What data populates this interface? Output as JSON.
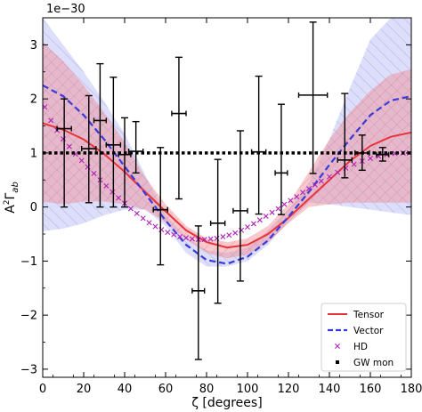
{
  "chart_data": {
    "type": "line",
    "title": "",
    "exponent_label": "1e−30",
    "xlabel": "ζ [degrees]",
    "ylabel_main": "A",
    "ylabel_sup": "2",
    "ylabel_gamma": "Γ",
    "ylabel_sub": "ab",
    "xlim": [
      0,
      180
    ],
    "ylim": [
      -3.15,
      3.5
    ],
    "x_ticks": [
      0,
      20,
      40,
      60,
      80,
      100,
      120,
      140,
      160,
      180
    ],
    "y_ticks": [
      -3,
      -2,
      -1,
      0,
      1,
      2,
      3
    ],
    "x_tick_labels": [
      "0",
      "20",
      "40",
      "60",
      "80",
      "100",
      "120",
      "140",
      "160",
      "180"
    ],
    "y_tick_labels": [
      "−3",
      "−2",
      "−1",
      "0",
      "1",
      "2",
      "3"
    ],
    "grid": false,
    "legend_position": "bottom-right",
    "colors": {
      "tensor": "#e8333a",
      "vector": "#3a3ad8",
      "hd": "#b020b8",
      "gw_mon": "#000000",
      "tensor_band": "#f08a92",
      "vector_band": "#9ea0ee"
    },
    "series": [
      {
        "name": "Tensor",
        "style": "solid",
        "x": [
          0,
          10,
          20,
          30,
          40,
          50,
          60,
          70,
          80,
          90,
          100,
          110,
          120,
          130,
          140,
          150,
          160,
          170,
          180
        ],
        "y": [
          1.55,
          1.43,
          1.25,
          0.98,
          0.65,
          0.28,
          -0.08,
          -0.43,
          -0.65,
          -0.75,
          -0.7,
          -0.5,
          -0.2,
          0.15,
          0.5,
          0.85,
          1.13,
          1.3,
          1.38
        ]
      },
      {
        "name": "Vector",
        "style": "dashed",
        "x": [
          0,
          10,
          20,
          30,
          40,
          50,
          60,
          70,
          80,
          90,
          100,
          110,
          120,
          130,
          140,
          150,
          160,
          170,
          180
        ],
        "y": [
          2.25,
          2.05,
          1.7,
          1.25,
          0.75,
          0.25,
          -0.25,
          -0.7,
          -0.98,
          -1.05,
          -0.92,
          -0.62,
          -0.18,
          0.28,
          0.78,
          1.25,
          1.7,
          1.97,
          2.05
        ]
      },
      {
        "name": "HD",
        "style": "markers",
        "x": [
          1,
          4,
          7,
          10,
          13,
          16,
          19,
          22,
          25,
          28,
          31,
          34,
          37,
          40,
          43,
          46,
          49,
          52,
          55,
          58,
          61,
          64,
          67,
          70,
          73,
          76,
          79,
          82,
          85,
          88,
          91,
          94,
          97,
          100,
          103,
          106,
          109,
          112,
          115,
          118,
          121,
          124,
          127,
          130,
          133,
          136,
          140,
          144,
          148,
          152,
          156,
          160,
          164,
          168,
          172,
          176,
          179
        ],
        "y": [
          1.85,
          1.6,
          1.42,
          1.26,
          1.12,
          0.98,
          0.86,
          0.74,
          0.62,
          0.5,
          0.39,
          0.28,
          0.17,
          0.07,
          -0.03,
          -0.12,
          -0.21,
          -0.29,
          -0.36,
          -0.42,
          -0.47,
          -0.51,
          -0.55,
          -0.57,
          -0.59,
          -0.6,
          -0.6,
          -0.59,
          -0.58,
          -0.55,
          -0.52,
          -0.48,
          -0.43,
          -0.37,
          -0.31,
          -0.24,
          -0.17,
          -0.1,
          -0.03,
          0.05,
          0.12,
          0.19,
          0.27,
          0.34,
          0.41,
          0.48,
          0.56,
          0.64,
          0.72,
          0.79,
          0.85,
          0.9,
          0.94,
          0.97,
          0.99,
          1.0,
          1.0
        ]
      },
      {
        "name": "GW mon",
        "style": "dotted",
        "x": [
          0,
          180
        ],
        "y": [
          1.0,
          1.0
        ]
      }
    ],
    "bands": [
      {
        "series": "Vector",
        "x": [
          0,
          10,
          20,
          30,
          40,
          50,
          60,
          70,
          80,
          90,
          100,
          110,
          120,
          130,
          140,
          150,
          160,
          170,
          180
        ],
        "upper": [
          3.5,
          3.0,
          2.5,
          1.95,
          1.35,
          0.6,
          -0.15,
          -0.55,
          -0.8,
          -0.85,
          -0.75,
          -0.45,
          -0.05,
          0.45,
          1.25,
          2.2,
          3.1,
          3.5,
          3.5
        ],
        "lower": [
          -0.45,
          -0.4,
          -0.3,
          -0.15,
          -0.05,
          -0.05,
          -0.35,
          -0.85,
          -1.1,
          -1.1,
          -1.0,
          -0.7,
          -0.25,
          0.08,
          0.05,
          0.0,
          -0.05,
          -0.1,
          -0.15
        ]
      },
      {
        "series": "Tensor",
        "x": [
          0,
          10,
          20,
          30,
          40,
          50,
          60,
          70,
          80,
          90,
          100,
          110,
          120,
          130,
          140,
          150,
          160,
          170,
          180
        ],
        "upper": [
          3.05,
          2.7,
          2.25,
          1.75,
          1.2,
          0.55,
          0.05,
          -0.35,
          -0.58,
          -0.65,
          -0.58,
          -0.35,
          0.05,
          0.65,
          1.25,
          1.75,
          2.15,
          2.45,
          2.55
        ],
        "lower": [
          0.1,
          0.05,
          0.1,
          0.1,
          0.05,
          -0.05,
          -0.28,
          -0.6,
          -0.85,
          -0.95,
          -0.88,
          -0.65,
          -0.3,
          0.0,
          0.05,
          0.08,
          0.08,
          0.08,
          0.08
        ]
      }
    ],
    "error_points": [
      {
        "x": 10.5,
        "y": 1.45,
        "xerr": 3.5,
        "yerr_low": 1.45,
        "yerr_high": 0.55
      },
      {
        "x": 22.5,
        "y": 1.08,
        "xerr": 3.5,
        "yerr_low": 1.0,
        "yerr_high": 0.98
      },
      {
        "x": 28.0,
        "y": 1.6,
        "xerr": 3.0,
        "yerr_low": 1.6,
        "yerr_high": 1.05
      },
      {
        "x": 34.5,
        "y": 1.15,
        "xerr": 3.5,
        "yerr_low": 1.15,
        "yerr_high": 1.25
      },
      {
        "x": 40.0,
        "y": 0.97,
        "xerr": 3.0,
        "yerr_low": 0.97,
        "yerr_high": 0.68
      },
      {
        "x": 45.5,
        "y": 1.03,
        "xerr": 3.5,
        "yerr_low": 0.4,
        "yerr_high": 0.55
      },
      {
        "x": 57.5,
        "y": -0.05,
        "xerr": 3.5,
        "yerr_low": 1.02,
        "yerr_high": 1.15
      },
      {
        "x": 66.5,
        "y": 1.73,
        "xerr": 3.5,
        "yerr_low": 1.58,
        "yerr_high": 1.04
      },
      {
        "x": 76.0,
        "y": -1.55,
        "xerr": 3.0,
        "yerr_low": 1.27,
        "yerr_high": 1.2
      },
      {
        "x": 85.5,
        "y": -0.3,
        "xerr": 3.5,
        "yerr_low": 1.48,
        "yerr_high": 1.18
      },
      {
        "x": 96.5,
        "y": -0.07,
        "xerr": 3.5,
        "yerr_low": 1.3,
        "yerr_high": 1.48
      },
      {
        "x": 105.5,
        "y": 1.02,
        "xerr": 3.5,
        "yerr_low": 1.15,
        "yerr_high": 1.4
      },
      {
        "x": 116.5,
        "y": 0.63,
        "xerr": 3.0,
        "yerr_low": 0.77,
        "yerr_high": 1.27
      },
      {
        "x": 132.0,
        "y": 2.07,
        "xerr": 7.0,
        "yerr_low": 1.45,
        "yerr_high": 1.35
      },
      {
        "x": 147.5,
        "y": 0.87,
        "xerr": 3.5,
        "yerr_low": 0.33,
        "yerr_high": 1.23
      },
      {
        "x": 156.0,
        "y": 1.0,
        "xerr": 3.5,
        "yerr_low": 0.32,
        "yerr_high": 0.33
      },
      {
        "x": 166.0,
        "y": 0.97,
        "xerr": 3.0,
        "yerr_low": 0.12,
        "yerr_high": 0.13
      }
    ],
    "legend": [
      {
        "label": "Tensor",
        "symbol": "solid"
      },
      {
        "label": "Vector",
        "symbol": "dashed"
      },
      {
        "label": "HD",
        "symbol": "x"
      },
      {
        "label": "GW mon",
        "symbol": "square"
      }
    ]
  }
}
